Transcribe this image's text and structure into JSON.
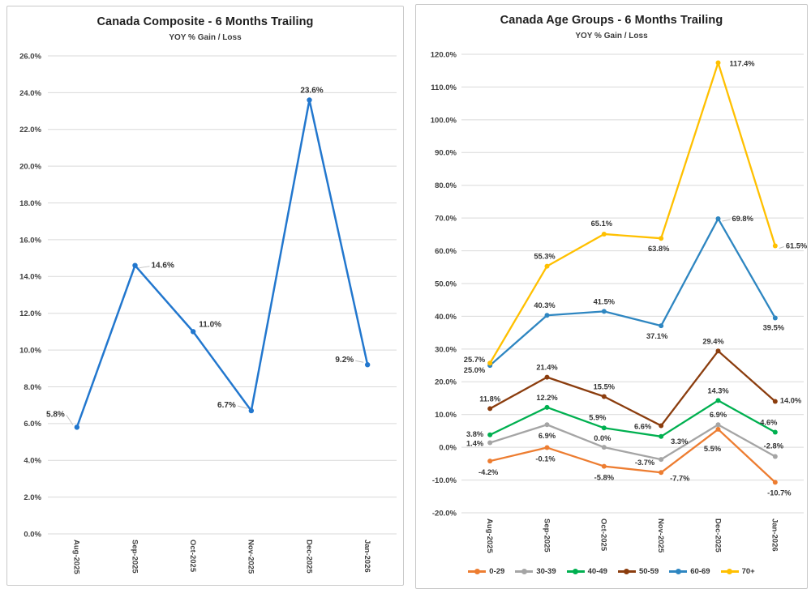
{
  "chart_data": [
    {
      "type": "line",
      "title": "Canada Composite - 6 Months Trailing",
      "subtitle": "YOY % Gain / Loss",
      "categories": [
        "Aug-2025",
        "Sep-2025",
        "Oct-2025",
        "Nov-2025",
        "Dec-2025",
        "Jan-2026"
      ],
      "ylim": [
        0,
        26
      ],
      "ytick_step": 2,
      "y_ticks": [
        "0.0%",
        "2.0%",
        "4.0%",
        "6.0%",
        "8.0%",
        "10.0%",
        "12.0%",
        "14.0%",
        "16.0%",
        "18.0%",
        "20.0%",
        "22.0%",
        "24.0%",
        "26.0%"
      ],
      "grid": true,
      "legend_position": "none",
      "series": [
        {
          "name": "Composite",
          "color": "#2277CE",
          "values": [
            5.8,
            14.6,
            11.0,
            6.7,
            23.6,
            9.2
          ],
          "labels": [
            "5.8%",
            "14.6%",
            "11.0%",
            "6.7%",
            "23.6%",
            "9.2%"
          ]
        }
      ]
    },
    {
      "type": "line",
      "title": "Canada Age Groups - 6 Months Trailing",
      "subtitle": "YOY % Gain / Loss",
      "categories": [
        "Aug-2025",
        "Sep-2025",
        "Oct-2025",
        "Nov-2025",
        "Dec-2025",
        "Jan-2026"
      ],
      "ylim": [
        -20,
        120
      ],
      "ytick_step": 10,
      "y_ticks": [
        "-20.0%",
        "-10.0%",
        "0.0%",
        "10.0%",
        "20.0%",
        "30.0%",
        "40.0%",
        "50.0%",
        "60.0%",
        "70.0%",
        "80.0%",
        "90.0%",
        "100.0%",
        "110.0%",
        "120.0%"
      ],
      "grid": true,
      "legend_position": "bottom",
      "series": [
        {
          "name": "0-29",
          "color": "#ED7D31",
          "values": [
            -4.2,
            -0.1,
            -5.8,
            -7.7,
            5.5,
            -10.7
          ],
          "labels": [
            "-4.2%",
            "-0.1%",
            "-5.8%",
            "-7.7%",
            "5.5%",
            "-10.7%"
          ]
        },
        {
          "name": "30-39",
          "color": "#A5A5A5",
          "values": [
            1.4,
            6.9,
            0.0,
            -3.7,
            6.9,
            -2.8
          ],
          "labels": [
            "1.4%",
            "6.9%",
            "0.0%",
            "-3.7%",
            "6.9%",
            "-2.8%"
          ]
        },
        {
          "name": "40-49",
          "color": "#00B050",
          "values": [
            3.8,
            12.2,
            5.9,
            3.3,
            14.3,
            4.6
          ],
          "labels": [
            "3.8%",
            "12.2%",
            "5.9%",
            "3.3%",
            "14.3%",
            "4.6%"
          ]
        },
        {
          "name": "50-59",
          "color": "#8B3D0E",
          "values": [
            11.8,
            21.4,
            15.5,
            6.6,
            29.4,
            14.0
          ],
          "labels": [
            "11.8%",
            "21.4%",
            "15.5%",
            "6.6%",
            "29.4%",
            "14.0%"
          ]
        },
        {
          "name": "60-69",
          "color": "#2E86C1",
          "values": [
            25.0,
            40.3,
            41.5,
            37.1,
            69.8,
            39.5
          ],
          "labels": [
            "25.0%",
            "40.3%",
            "41.5%",
            "37.1%",
            "69.8%",
            "39.5%"
          ]
        },
        {
          "name": "70+",
          "color": "#FFC000",
          "values": [
            25.7,
            55.3,
            65.1,
            63.8,
            117.4,
            61.5
          ],
          "labels": [
            "25.7%",
            "55.3%",
            "65.1%",
            "63.8%",
            "117.4%",
            "61.5%"
          ]
        }
      ]
    }
  ],
  "style_colors": {
    "gridline": "#D9D9D9",
    "axis_text": "#3F3F3F",
    "label_text": "#333333",
    "leader_line": "#BFBFBF"
  }
}
